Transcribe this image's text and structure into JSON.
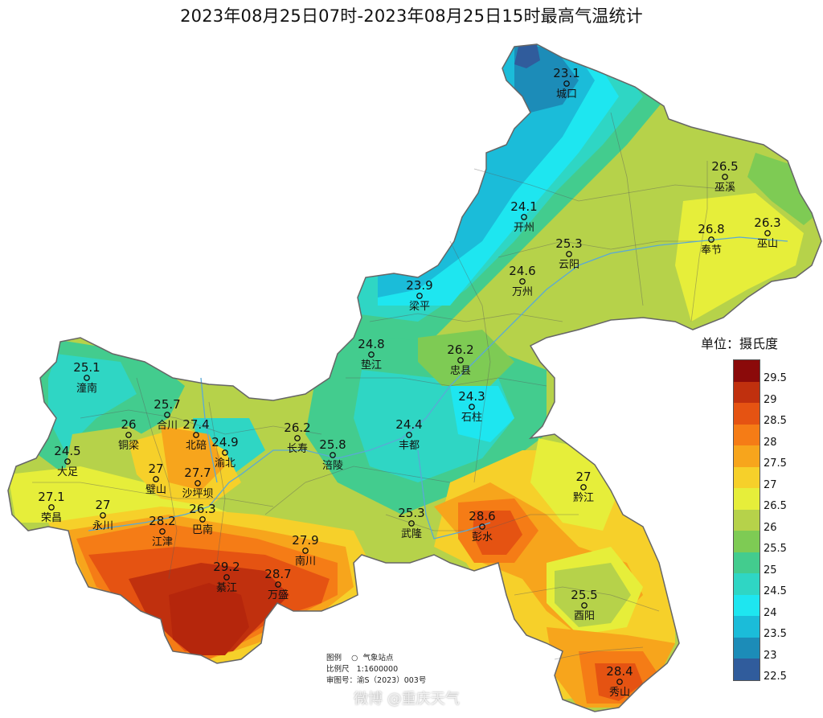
{
  "title": "2023年08月25日07时-2023年08月25日15时最高气温统计",
  "legend": {
    "title": "单位：摄氏度",
    "levels": [
      {
        "label": "29.5",
        "color": "#8b0a0a"
      },
      {
        "label": "29",
        "color": "#c0300e"
      },
      {
        "label": "28.5",
        "color": "#e55312"
      },
      {
        "label": "28",
        "color": "#f57c16"
      },
      {
        "label": "27.5",
        "color": "#f7a51c"
      },
      {
        "label": "27",
        "color": "#f6d02a"
      },
      {
        "label": "26.5",
        "color": "#e6ee3a"
      },
      {
        "label": "26",
        "color": "#b6d24a"
      },
      {
        "label": "25.5",
        "color": "#7ecb54"
      },
      {
        "label": "25",
        "color": "#43cc8e"
      },
      {
        "label": "24.5",
        "color": "#2fd6c4"
      },
      {
        "label": "24",
        "color": "#1ee6f0"
      },
      {
        "label": "23.5",
        "color": "#1bbcd9"
      },
      {
        "label": "23",
        "color": "#1c8cb8"
      },
      {
        "label": "22.5",
        "color": "#305c9c"
      }
    ]
  },
  "stations": [
    {
      "name": "城口",
      "value": "23.1"
    },
    {
      "name": "巫溪",
      "value": "26.5"
    },
    {
      "name": "开州",
      "value": "24.1"
    },
    {
      "name": "巫山",
      "value": "26.3"
    },
    {
      "name": "奉节",
      "value": "26.8"
    },
    {
      "name": "云阳",
      "value": "25.3"
    },
    {
      "name": "万州",
      "value": "24.6"
    },
    {
      "name": "梁平",
      "value": "23.9"
    },
    {
      "name": "垫江",
      "value": "24.8"
    },
    {
      "name": "忠县",
      "value": "26.2"
    },
    {
      "name": "石柱",
      "value": "24.3"
    },
    {
      "name": "潼南",
      "value": "25.1"
    },
    {
      "name": "合川",
      "value": "25.7"
    },
    {
      "name": "铜梁",
      "value": "26"
    },
    {
      "name": "北碚",
      "value": "27.4"
    },
    {
      "name": "渝北",
      "value": "24.9"
    },
    {
      "name": "长寿",
      "value": "26.2"
    },
    {
      "name": "涪陵",
      "value": "25.8"
    },
    {
      "name": "丰都",
      "value": "24.4"
    },
    {
      "name": "大足",
      "value": "24.5"
    },
    {
      "name": "璧山",
      "value": "27"
    },
    {
      "name": "沙坪坝",
      "value": "27.7"
    },
    {
      "name": "荣昌",
      "value": "27.1"
    },
    {
      "name": "永川",
      "value": "27"
    },
    {
      "name": "巴南",
      "value": "26.3"
    },
    {
      "name": "江津",
      "value": "28.2"
    },
    {
      "name": "南川",
      "value": "27.9"
    },
    {
      "name": "綦江",
      "value": "29.2"
    },
    {
      "name": "万盛",
      "value": "28.7"
    },
    {
      "name": "武隆",
      "value": "25.3"
    },
    {
      "name": "彭水",
      "value": "28.6"
    },
    {
      "name": "黔江",
      "value": "27"
    },
    {
      "name": "酉阳",
      "value": "25.5"
    },
    {
      "name": "秀山",
      "value": "28.4"
    }
  ],
  "info": {
    "legend_label": "图例",
    "station_symbol": "○",
    "station_label": "气象站点",
    "scale_label": "比例尺",
    "scale_value": "1:1600000",
    "approval_label": "审图号：",
    "approval_value": "渝S（2023）003号"
  },
  "watermark": "微博 @重庆天气"
}
